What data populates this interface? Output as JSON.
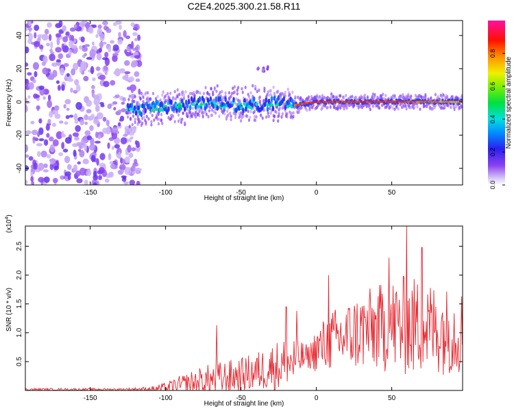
{
  "title": "C2E4.2025.300.21.58.R11",
  "colors": {
    "snr_line": "#e8222a",
    "spectrum_low": "#c8a8f0",
    "spectrum_mid": "#00e0c0",
    "spectrum_high": "#e81010"
  },
  "chart_data": [
    {
      "type": "heatmap",
      "title": "",
      "xlabel": "Height of straight line (km)",
      "ylabel": "Frequency (Hz)",
      "xlim": [
        -193,
        97
      ],
      "ylim": [
        -50,
        49
      ],
      "xticks": [
        -150,
        -100,
        -50,
        0,
        50
      ],
      "yticks": [
        -40,
        -20,
        0,
        20,
        40
      ],
      "noise_region_x": [
        -193,
        -117
      ],
      "signal": [
        {
          "x": -125,
          "f": -5,
          "amp": 0.25
        },
        {
          "x": -100,
          "f": -3,
          "amp": 0.3
        },
        {
          "x": -75,
          "f": -1,
          "amp": 0.35
        },
        {
          "x": -50,
          "f": -2,
          "amp": 0.35
        },
        {
          "x": -35,
          "f": 20,
          "amp": 0.15
        },
        {
          "x": -25,
          "f": -1,
          "amp": 0.4
        },
        {
          "x": -15,
          "f": -2,
          "amp": 0.85
        },
        {
          "x": 0,
          "f": 0,
          "amp": 0.9
        },
        {
          "x": 50,
          "f": 0,
          "amp": 0.9
        },
        {
          "x": 95,
          "f": 0,
          "amp": 0.8
        }
      ],
      "colorbar": {
        "label": "Normalized spectral amplitude",
        "range": [
          0.0,
          1.0
        ],
        "ticks": [
          0.0,
          0.2,
          0.4,
          0.6,
          0.8
        ]
      }
    },
    {
      "type": "line",
      "title": "",
      "xlabel": "Height of straight line (km)",
      "ylabel": "SNR (10 * v/v)",
      "scale_label": "(x10",
      "scale_exponent": "4",
      "scale_suffix": ")",
      "xlim": [
        -193,
        97
      ],
      "ylim": [
        0,
        2.85
      ],
      "xticks": [
        -150,
        -100,
        -50,
        0,
        50
      ],
      "yticks": [
        0.5,
        1.0,
        1.5,
        2.0,
        2.5
      ],
      "ytick_labels": [
        "0.5",
        "1.0",
        "1.5",
        "2.0",
        "2.5"
      ],
      "envelope": {
        "x": [
          -193,
          -130,
          -110,
          -100,
          -90,
          -80,
          -70,
          -60,
          -50,
          -40,
          -30,
          -20,
          -15,
          -10,
          -5,
          0,
          10,
          20,
          30,
          40,
          50,
          60,
          70,
          80,
          90,
          97
        ],
        "base": [
          0.02,
          0.02,
          0.03,
          0.05,
          0.1,
          0.15,
          0.2,
          0.25,
          0.3,
          0.35,
          0.45,
          0.5,
          0.55,
          0.6,
          0.6,
          0.75,
          0.9,
          1.0,
          1.1,
          1.15,
          1.2,
          1.2,
          1.2,
          1.15,
          1.1,
          1.1
        ],
        "spread": [
          0.02,
          0.02,
          0.04,
          0.1,
          0.18,
          0.25,
          0.3,
          0.3,
          0.3,
          0.35,
          0.4,
          0.5,
          0.45,
          0.3,
          0.2,
          0.4,
          0.55,
          0.6,
          0.7,
          0.75,
          0.85,
          0.9,
          0.85,
          0.8,
          0.75,
          0.75
        ]
      },
      "peaks": [
        {
          "x": -66,
          "y": 1.13
        },
        {
          "x": -20,
          "y": 1.45
        },
        {
          "x": -13,
          "y": 1.38
        },
        {
          "x": 8,
          "y": 2.0
        },
        {
          "x": 48,
          "y": 2.3
        },
        {
          "x": 60,
          "y": 2.85
        },
        {
          "x": 70,
          "y": 2.48
        }
      ]
    }
  ]
}
